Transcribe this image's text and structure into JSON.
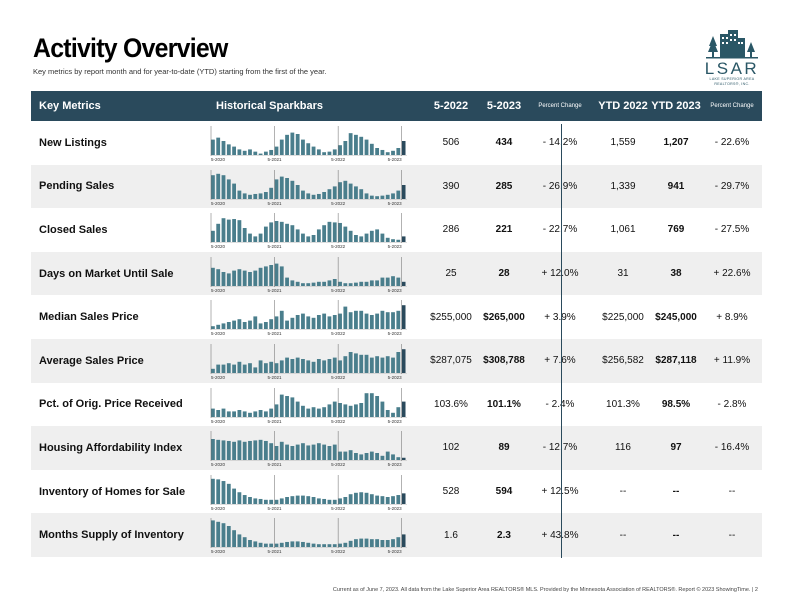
{
  "header": {
    "title": "Activity Overview",
    "subtitle": "Key metrics by report month and for year-to-date (YTD) starting from the first of the year."
  },
  "logo": {
    "text": "LSAR",
    "subtext_line1": "LAKE SUPERIOR AREA",
    "subtext_line2": "REALTORS®, INC.",
    "color": "#2a5766"
  },
  "table": {
    "headers": {
      "metric": "Key Metrics",
      "sparkbars": "Historical Sparkbars",
      "month_prev": "5-2022",
      "month_curr": "5-2023",
      "pct_change": "Percent Change",
      "ytd_prev": "YTD 2022",
      "ytd_curr": "YTD 2023",
      "ytd_pct_change": "Percent Change"
    },
    "spark_axis": [
      "5-2020",
      "5-2021",
      "5-2022",
      "5-2023"
    ],
    "rows": [
      {
        "label": "New Listings",
        "m_prev": "506",
        "m_curr": "434",
        "m_change": "- 14.2%",
        "y_prev": "1,559",
        "y_curr": "1,207",
        "y_change": "- 22.6%",
        "bars": [
          0.55,
          0.62,
          0.5,
          0.38,
          0.3,
          0.2,
          0.15,
          0.2,
          0.12,
          0.05,
          0.12,
          0.18,
          0.3,
          0.55,
          0.72,
          0.8,
          0.75,
          0.55,
          0.42,
          0.3,
          0.2,
          0.1,
          0.12,
          0.2,
          0.35,
          0.5,
          0.78,
          0.72,
          0.65,
          0.55,
          0.4,
          0.25,
          0.18,
          0.1,
          0.15,
          0.25,
          0.5
        ]
      },
      {
        "label": "Pending Sales",
        "m_prev": "390",
        "m_curr": "285",
        "m_change": "- 26.9%",
        "y_prev": "1,339",
        "y_curr": "941",
        "y_change": "- 29.7%",
        "bars": [
          0.85,
          0.9,
          0.85,
          0.7,
          0.55,
          0.3,
          0.2,
          0.15,
          0.18,
          0.2,
          0.25,
          0.4,
          0.7,
          0.8,
          0.75,
          0.65,
          0.5,
          0.3,
          0.2,
          0.15,
          0.18,
          0.25,
          0.35,
          0.45,
          0.6,
          0.65,
          0.55,
          0.45,
          0.35,
          0.2,
          0.12,
          0.1,
          0.12,
          0.15,
          0.2,
          0.3,
          0.5
        ]
      },
      {
        "label": "Closed Sales",
        "m_prev": "286",
        "m_curr": "221",
        "m_change": "- 22.7%",
        "y_prev": "1,061",
        "y_curr": "769",
        "y_change": "- 27.5%",
        "bars": [
          0.4,
          0.65,
          0.85,
          0.8,
          0.82,
          0.78,
          0.5,
          0.3,
          0.2,
          0.3,
          0.55,
          0.7,
          0.75,
          0.72,
          0.65,
          0.6,
          0.45,
          0.3,
          0.2,
          0.25,
          0.45,
          0.6,
          0.72,
          0.7,
          0.68,
          0.55,
          0.4,
          0.25,
          0.2,
          0.3,
          0.4,
          0.45,
          0.3,
          0.15,
          0.1,
          0.08,
          0.2
        ]
      },
      {
        "label": "Days on Market Until Sale",
        "m_prev": "25",
        "m_curr": "28",
        "m_change": "+ 12.0%",
        "y_prev": "31",
        "y_curr": "38",
        "y_change": "+ 22.6%",
        "bars": [
          0.65,
          0.6,
          0.5,
          0.45,
          0.55,
          0.6,
          0.55,
          0.5,
          0.55,
          0.65,
          0.7,
          0.75,
          0.8,
          0.7,
          0.3,
          0.2,
          0.15,
          0.1,
          0.1,
          0.12,
          0.15,
          0.15,
          0.2,
          0.25,
          0.15,
          0.1,
          0.1,
          0.12,
          0.15,
          0.15,
          0.2,
          0.2,
          0.3,
          0.3,
          0.35,
          0.3,
          0.15
        ]
      },
      {
        "label": "Median Sales Price",
        "m_prev": "$255,000",
        "m_curr": "$265,000",
        "m_change": "+ 3.9%",
        "y_prev": "$225,000",
        "y_curr": "$245,000",
        "y_change": "+ 8.9%",
        "bars": [
          0.1,
          0.15,
          0.2,
          0.25,
          0.3,
          0.35,
          0.25,
          0.3,
          0.45,
          0.2,
          0.25,
          0.35,
          0.45,
          0.65,
          0.3,
          0.4,
          0.5,
          0.55,
          0.45,
          0.4,
          0.5,
          0.55,
          0.45,
          0.5,
          0.55,
          0.8,
          0.6,
          0.65,
          0.65,
          0.55,
          0.5,
          0.55,
          0.65,
          0.6,
          0.6,
          0.65,
          0.85
        ]
      },
      {
        "label": "Average Sales Price",
        "m_prev": "$287,075",
        "m_curr": "$308,788",
        "m_change": "+ 7.6%",
        "y_prev": "$256,582",
        "y_curr": "$287,118",
        "y_change": "+ 11.9%",
        "bars": [
          0.15,
          0.3,
          0.3,
          0.35,
          0.3,
          0.4,
          0.3,
          0.35,
          0.2,
          0.45,
          0.35,
          0.4,
          0.35,
          0.45,
          0.55,
          0.5,
          0.55,
          0.5,
          0.45,
          0.4,
          0.5,
          0.45,
          0.5,
          0.55,
          0.45,
          0.6,
          0.75,
          0.7,
          0.65,
          0.65,
          0.55,
          0.6,
          0.55,
          0.6,
          0.55,
          0.75,
          0.85
        ]
      },
      {
        "label": "Pct. of Orig. Price Received",
        "m_prev": "103.6%",
        "m_curr": "101.1%",
        "m_change": "- 2.4%",
        "y_prev": "101.3%",
        "y_curr": "98.5%",
        "y_change": "- 2.8%",
        "bars": [
          0.3,
          0.25,
          0.3,
          0.2,
          0.2,
          0.25,
          0.2,
          0.15,
          0.2,
          0.25,
          0.2,
          0.3,
          0.45,
          0.8,
          0.75,
          0.7,
          0.55,
          0.4,
          0.3,
          0.35,
          0.3,
          0.35,
          0.45,
          0.55,
          0.5,
          0.45,
          0.4,
          0.45,
          0.5,
          0.85,
          0.85,
          0.75,
          0.55,
          0.25,
          0.15,
          0.35,
          0.55
        ]
      },
      {
        "label": "Housing Affordability Index",
        "m_prev": "102",
        "m_curr": "89",
        "m_change": "- 12.7%",
        "y_prev": "116",
        "y_curr": "97",
        "y_change": "- 16.4%",
        "bars": [
          0.75,
          0.72,
          0.7,
          0.68,
          0.65,
          0.7,
          0.65,
          0.68,
          0.7,
          0.72,
          0.68,
          0.6,
          0.5,
          0.65,
          0.55,
          0.5,
          0.55,
          0.6,
          0.52,
          0.55,
          0.6,
          0.55,
          0.5,
          0.55,
          0.3,
          0.3,
          0.35,
          0.25,
          0.2,
          0.25,
          0.3,
          0.25,
          0.15,
          0.3,
          0.2,
          0.1,
          0.08
        ]
      },
      {
        "label": "Inventory of Homes for Sale",
        "m_prev": "528",
        "m_curr": "594",
        "m_change": "+ 12.5%",
        "y_prev": "--",
        "y_curr": "--",
        "y_change": "--",
        "bars": [
          0.9,
          0.88,
          0.82,
          0.72,
          0.55,
          0.42,
          0.32,
          0.25,
          0.2,
          0.18,
          0.15,
          0.15,
          0.15,
          0.2,
          0.25,
          0.28,
          0.3,
          0.3,
          0.28,
          0.25,
          0.2,
          0.18,
          0.15,
          0.15,
          0.2,
          0.25,
          0.35,
          0.4,
          0.42,
          0.4,
          0.35,
          0.3,
          0.28,
          0.25,
          0.28,
          0.32,
          0.38
        ]
      },
      {
        "label": "Months Supply of Inventory",
        "m_prev": "1.6",
        "m_curr": "2.3",
        "m_change": "+ 43.8%",
        "y_prev": "--",
        "y_curr": "--",
        "y_change": "--",
        "bars": [
          0.95,
          0.9,
          0.85,
          0.75,
          0.6,
          0.45,
          0.35,
          0.25,
          0.2,
          0.15,
          0.12,
          0.12,
          0.12,
          0.15,
          0.18,
          0.2,
          0.2,
          0.18,
          0.15,
          0.12,
          0.1,
          0.1,
          0.1,
          0.1,
          0.12,
          0.15,
          0.22,
          0.28,
          0.3,
          0.3,
          0.28,
          0.28,
          0.25,
          0.25,
          0.28,
          0.35,
          0.45
        ]
      }
    ]
  },
  "footer": {
    "text": "Current as of June 7, 2023. All data from the Lake Superior Area REALTORS® MLS. Provided by the Minnesota Association of REALTORS®. Report © 2023 ShowingTime.  |  2"
  },
  "colors": {
    "header_bg": "#2a4a5c",
    "bar": "#4a7e8c",
    "current_bar": "#2a4a5c",
    "alt_row": "#efefef"
  }
}
